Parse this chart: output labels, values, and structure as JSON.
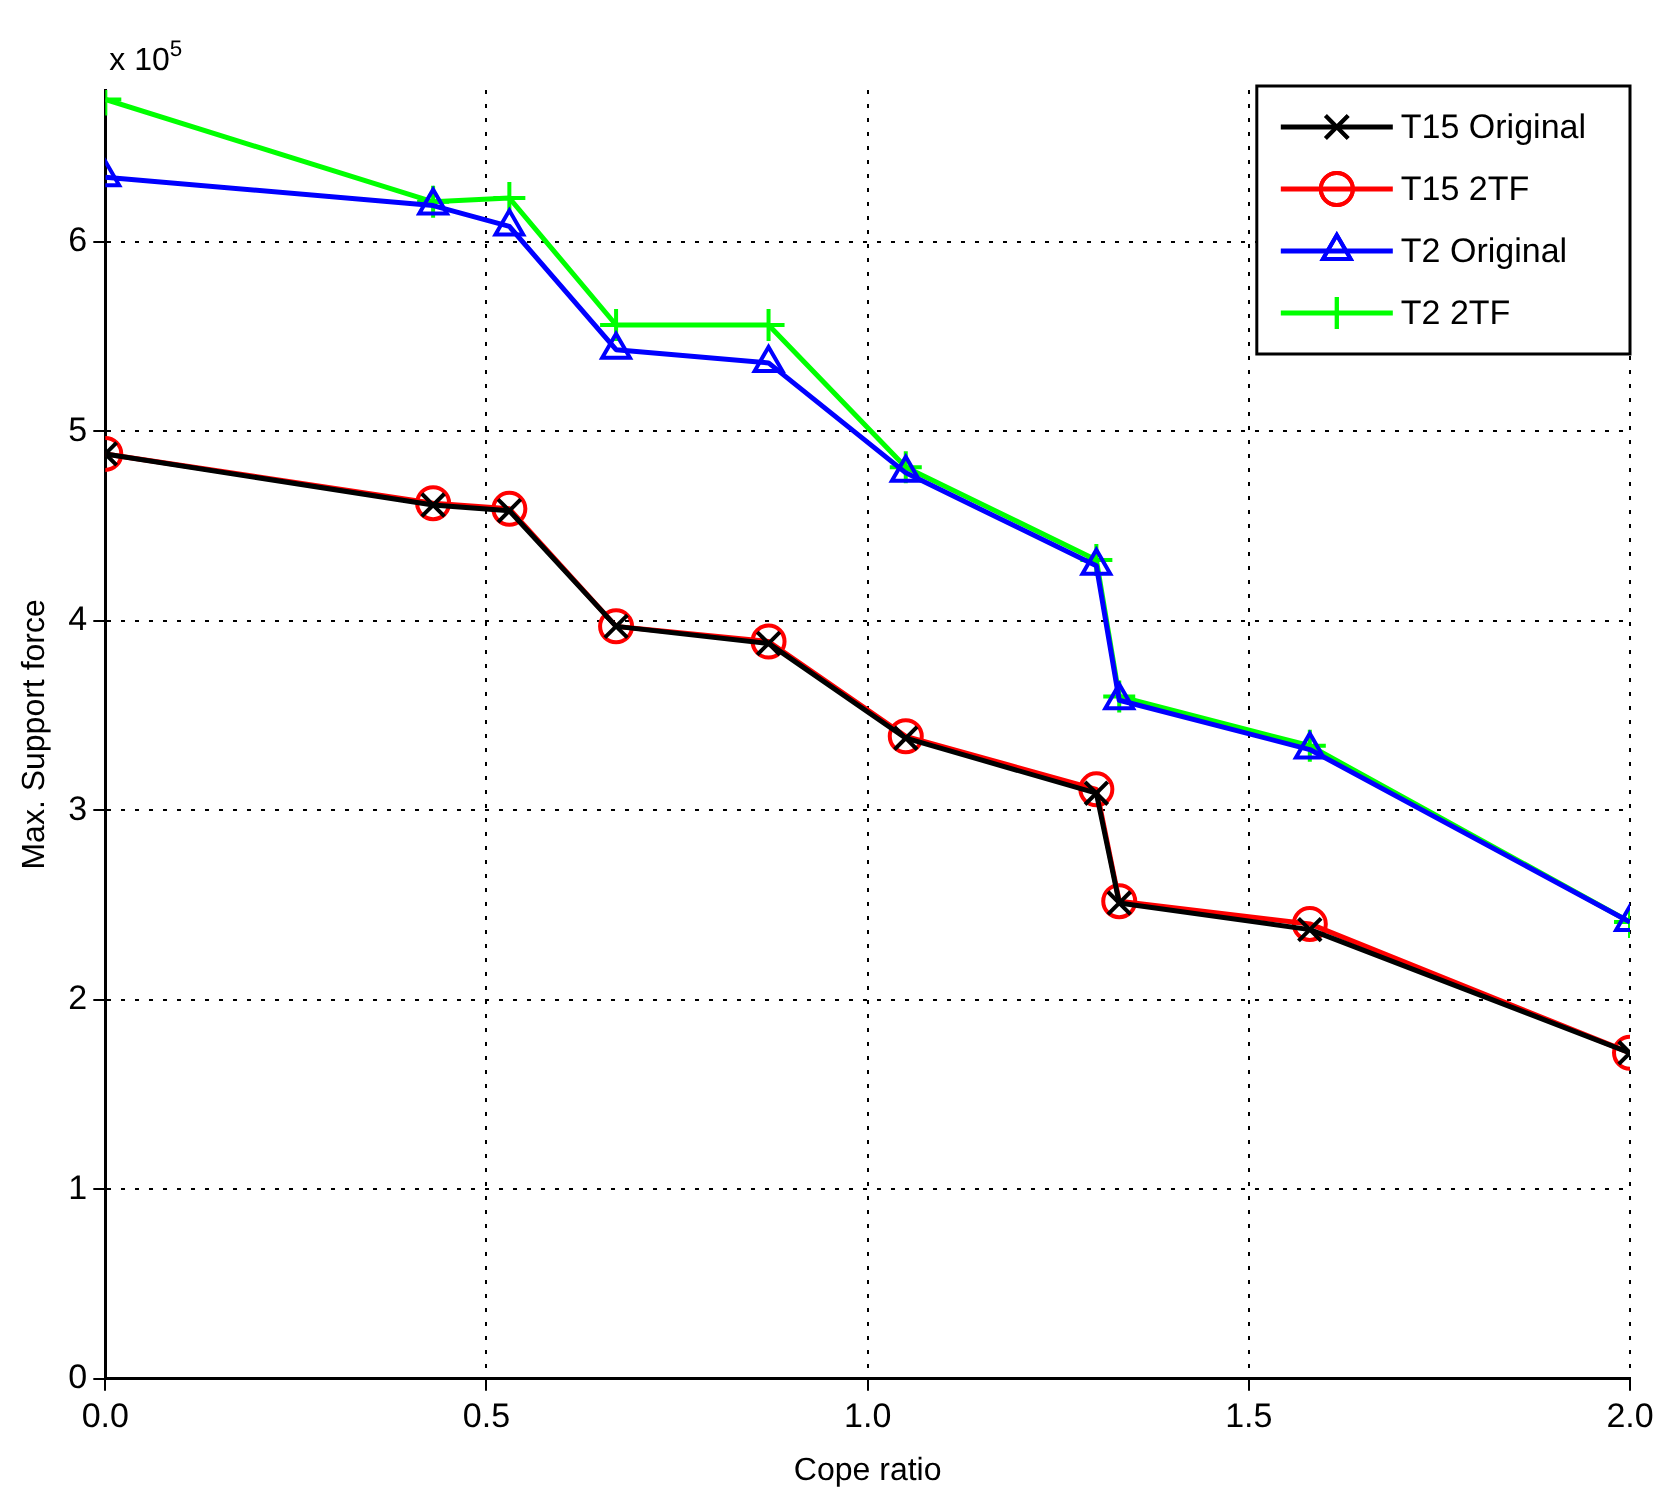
{
  "chart_data": {
    "type": "line",
    "xlabel": "Cope ratio",
    "ylabel": "Max. Support force",
    "annotations": [
      "x 10$^{5}$"
    ],
    "x": [
      0,
      0.43,
      0.53,
      0.67,
      0.87,
      1.05,
      1.3,
      1.33,
      1.58,
      2.0
    ],
    "xlim": [
      0,
      2
    ],
    "xticks": [
      {
        "value": 0,
        "label": "0.0"
      },
      {
        "value": 0.5,
        "label": "0.5"
      },
      {
        "value": 1,
        "label": "1.0"
      },
      {
        "value": 1.5,
        "label": "1.5"
      },
      {
        "value": 2,
        "label": "2.0"
      }
    ],
    "ylim": [
      0,
      6.8
    ],
    "yticks": [
      0,
      1,
      2,
      3,
      4,
      5,
      6
    ],
    "grid": true,
    "legend": "top right",
    "series": [
      {
        "name": "T15 Original",
        "color": "#000000",
        "marker": "x",
        "values": [
          4.88,
          4.61,
          4.58,
          3.97,
          3.88,
          3.38,
          3.09,
          2.51,
          2.37,
          1.72
        ]
      },
      {
        "name": "T15 2TF",
        "color": "#ff0000",
        "marker": "circle",
        "values": [
          4.88,
          4.62,
          4.59,
          3.97,
          3.89,
          3.39,
          3.11,
          2.52,
          2.4,
          1.72
        ]
      },
      {
        "name": "T2 Original",
        "color": "#0000ff",
        "marker": "triangle",
        "values": [
          6.34,
          6.19,
          6.08,
          5.43,
          5.36,
          4.78,
          4.29,
          3.58,
          3.32,
          2.41
        ]
      },
      {
        "name": "T2 2TF",
        "color": "#00ff00",
        "marker": "cross",
        "values": [
          6.75,
          6.21,
          6.23,
          5.56,
          5.56,
          4.81,
          4.32,
          3.6,
          3.34,
          2.41
        ]
      }
    ]
  }
}
